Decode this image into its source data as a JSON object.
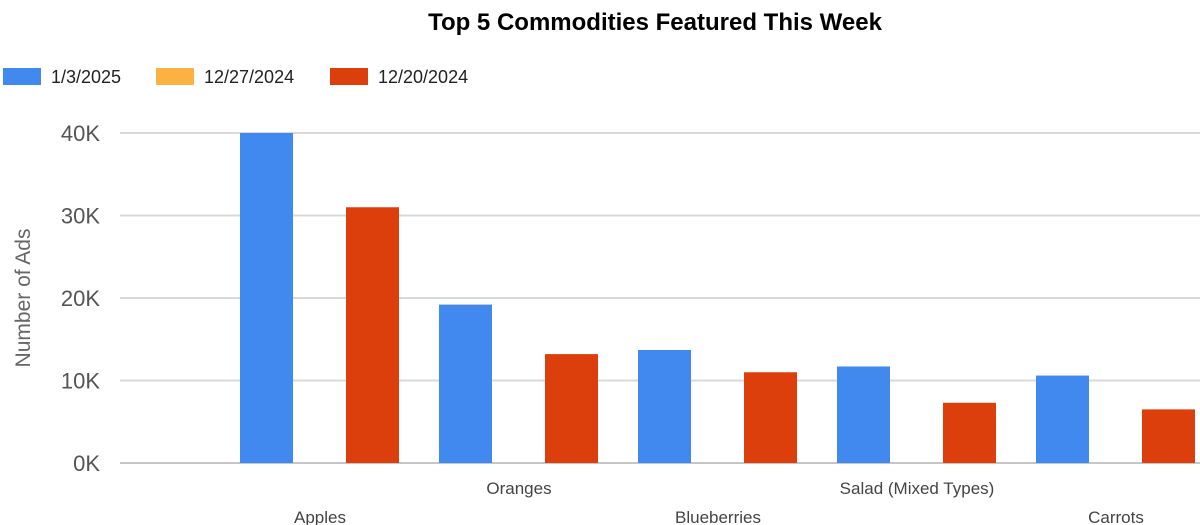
{
  "chart_data": {
    "type": "bar",
    "title": "Top 5 Commodities Featured This Week",
    "xlabel": "",
    "ylabel": "Number of Ads",
    "categories": [
      "Apples",
      "Oranges",
      "Blueberries",
      "Salad (Mixed Types)",
      "Carrots"
    ],
    "series": [
      {
        "name": "1/3/2025",
        "color": "#4189ef",
        "values": [
          40000,
          19200,
          13700,
          11700,
          10600
        ]
      },
      {
        "name": "12/27/2024",
        "color": "#fbb243",
        "values": [
          0,
          0,
          0,
          0,
          0
        ]
      },
      {
        "name": "12/20/2024",
        "color": "#dd3f0c",
        "values": [
          31000,
          13200,
          11000,
          7300,
          6500
        ]
      }
    ],
    "ylim": [
      0,
      40000
    ],
    "yticks": [
      {
        "value": 0,
        "label": "0K"
      },
      {
        "value": 10000,
        "label": "10K"
      },
      {
        "value": 20000,
        "label": "20K"
      },
      {
        "value": 30000,
        "label": "30K"
      },
      {
        "value": 40000,
        "label": "40K"
      }
    ],
    "grid": true,
    "legend_position": "top-left"
  }
}
